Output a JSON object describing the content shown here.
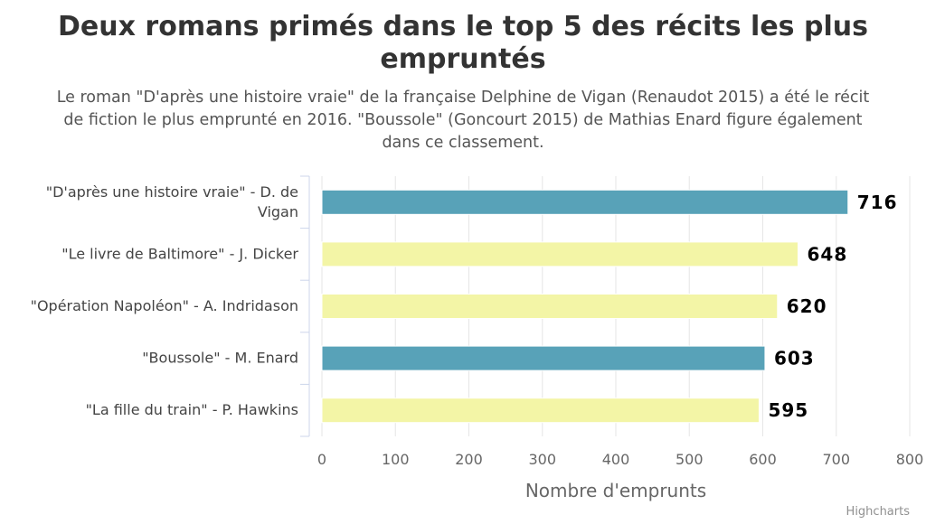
{
  "chart_data": {
    "type": "bar",
    "orientation": "horizontal",
    "title": "Deux romans primés dans le top 5 des récits les plus empruntés",
    "subtitle": "Le roman \"D'après une histoire vraie\" de la française Delphine de Vigan (Renaudot 2015) a été le récit de fiction le plus emprunté en 2016. \"Boussole\" (Goncourt 2015) de Mathias Enard figure également dans ce classement.",
    "categories": [
      "\"D'après une histoire vraie\" - D. de Vigan",
      "\"Le livre de Baltimore\" - J. Dicker",
      "\"Opération Napoléon\" - A. Indridason",
      "\"Boussole\" - M. Enard",
      "\"La fille du train\" - P. Hawkins"
    ],
    "values": [
      716,
      648,
      620,
      603,
      595
    ],
    "colors": [
      "#58a2b8",
      "#f3f5a6",
      "#f3f5a6",
      "#58a2b8",
      "#f3f5a6"
    ],
    "xlabel": "Nombre d'emprunts",
    "xlim": [
      0,
      800
    ],
    "ticks": [
      0,
      100,
      200,
      300,
      400,
      500,
      600,
      700,
      800
    ],
    "grid": true,
    "data_labels": true
  },
  "credits": "Highcharts"
}
